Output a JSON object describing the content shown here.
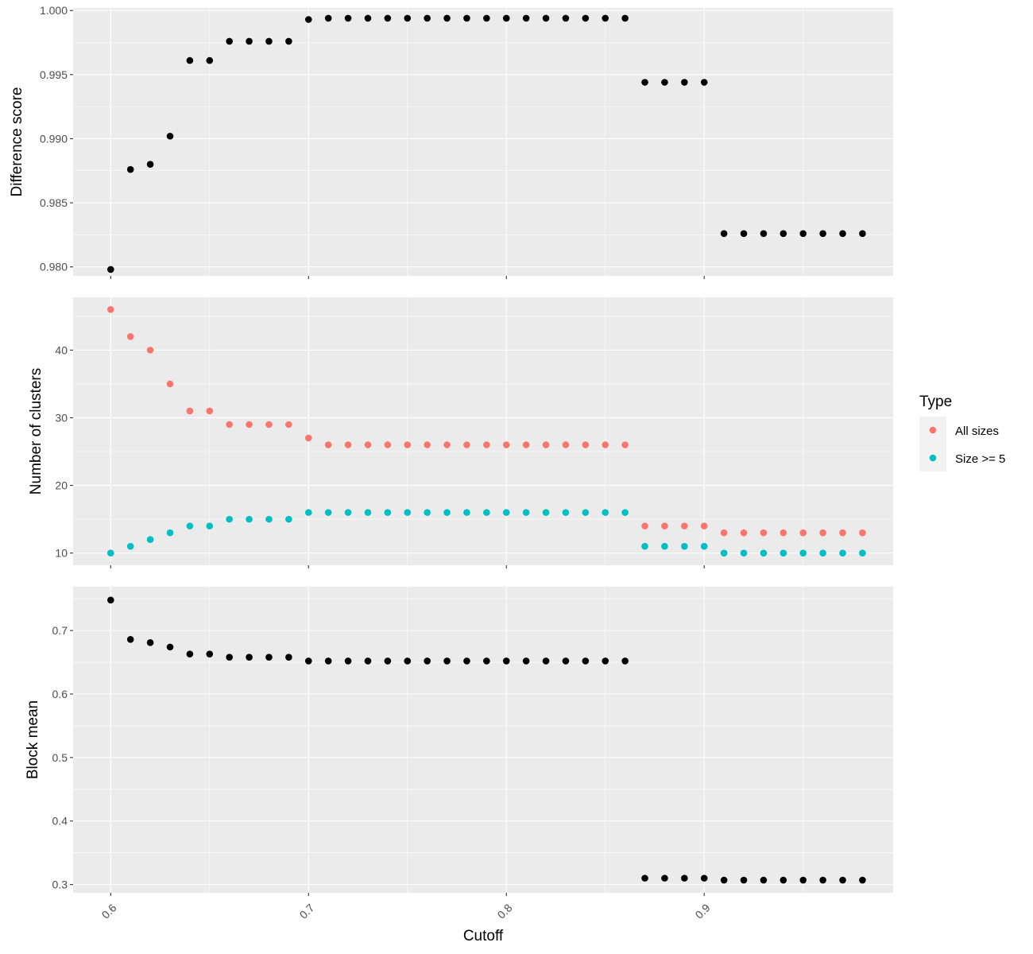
{
  "colors": {
    "panel_bg": "#EBEBEB",
    "grid_major": "#FFFFFF",
    "tick": "#333333",
    "tick_label": "#4D4D4D",
    "black_points": "#000000"
  },
  "x_axis": {
    "title": "Cutoff",
    "range": [
      0.581,
      0.9955
    ],
    "breaks": [
      0.6,
      0.7,
      0.8,
      0.9
    ],
    "tick_labels": [
      "0.6",
      "0.7",
      "0.8",
      "0.9"
    ],
    "minor_breaks": [
      0.65,
      0.75,
      0.85,
      0.95
    ]
  },
  "legend": {
    "title": "Type",
    "entries": [
      {
        "label": "All sizes",
        "color": "#F8766D"
      },
      {
        "label": "Size >= 5",
        "color": "#00BFC4"
      }
    ]
  },
  "chart_data": [
    {
      "type": "scatter",
      "ylabel": "Difference score",
      "xlabel": "Cutoff",
      "ylim": [
        0.9793,
        1.0002
      ],
      "y_breaks": [
        0.98,
        0.985,
        0.99,
        0.995,
        1.0
      ],
      "y_tick_labels": [
        "0.980",
        "0.985",
        "0.990",
        "0.995",
        "1.000"
      ],
      "series": [
        {
          "color": "#000000",
          "x": [
            0.6,
            0.61,
            0.62,
            0.63,
            0.64,
            0.65,
            0.66,
            0.67,
            0.68,
            0.69,
            0.7,
            0.71,
            0.72,
            0.73,
            0.74,
            0.75,
            0.76,
            0.77,
            0.78,
            0.79,
            0.8,
            0.81,
            0.82,
            0.83,
            0.84,
            0.85,
            0.86,
            0.87,
            0.88,
            0.89,
            0.9,
            0.91,
            0.92,
            0.93,
            0.94,
            0.95,
            0.96,
            0.97,
            0.98
          ],
          "values": [
            0.9798,
            0.9876,
            0.988,
            0.9902,
            0.9961,
            0.9961,
            0.9976,
            0.9976,
            0.9976,
            0.9976,
            0.9993,
            0.9994,
            0.9994,
            0.9994,
            0.9994,
            0.9994,
            0.9994,
            0.9994,
            0.9994,
            0.9994,
            0.9994,
            0.9994,
            0.9994,
            0.9994,
            0.9994,
            0.9994,
            0.9994,
            0.9944,
            0.9944,
            0.9944,
            0.9944,
            0.9826,
            0.9826,
            0.9826,
            0.9826,
            0.9826,
            0.9826,
            0.9826,
            0.9826
          ]
        }
      ]
    },
    {
      "type": "scatter",
      "ylabel": "Number of clusters",
      "xlabel": "Cutoff",
      "ylim": [
        8.2,
        47.8
      ],
      "y_breaks": [
        10,
        20,
        30,
        40
      ],
      "y_tick_labels": [
        "10",
        "20",
        "30",
        "40"
      ],
      "series": [
        {
          "name": "All sizes",
          "color": "#F8766D",
          "x": [
            0.6,
            0.61,
            0.62,
            0.63,
            0.64,
            0.65,
            0.66,
            0.67,
            0.68,
            0.69,
            0.7,
            0.71,
            0.72,
            0.73,
            0.74,
            0.75,
            0.76,
            0.77,
            0.78,
            0.79,
            0.8,
            0.81,
            0.82,
            0.83,
            0.84,
            0.85,
            0.86,
            0.87,
            0.88,
            0.89,
            0.9,
            0.91,
            0.92,
            0.93,
            0.94,
            0.95,
            0.96,
            0.97,
            0.98
          ],
          "values": [
            46,
            42,
            40,
            35,
            31,
            31,
            29,
            29,
            29,
            29,
            27,
            26,
            26,
            26,
            26,
            26,
            26,
            26,
            26,
            26,
            26,
            26,
            26,
            26,
            26,
            26,
            26,
            14,
            14,
            14,
            14,
            13,
            13,
            13,
            13,
            13,
            13,
            13,
            13
          ]
        },
        {
          "name": "Size >= 5",
          "color": "#00BFC4",
          "x": [
            0.6,
            0.61,
            0.62,
            0.63,
            0.64,
            0.65,
            0.66,
            0.67,
            0.68,
            0.69,
            0.7,
            0.71,
            0.72,
            0.73,
            0.74,
            0.75,
            0.76,
            0.77,
            0.78,
            0.79,
            0.8,
            0.81,
            0.82,
            0.83,
            0.84,
            0.85,
            0.86,
            0.87,
            0.88,
            0.89,
            0.9,
            0.91,
            0.92,
            0.93,
            0.94,
            0.95,
            0.96,
            0.97,
            0.98
          ],
          "values": [
            10,
            11,
            12,
            13,
            14,
            14,
            15,
            15,
            15,
            15,
            16,
            16,
            16,
            16,
            16,
            16,
            16,
            16,
            16,
            16,
            16,
            16,
            16,
            16,
            16,
            16,
            16,
            11,
            11,
            11,
            11,
            10,
            10,
            10,
            10,
            10,
            10,
            10,
            10
          ]
        }
      ]
    },
    {
      "type": "scatter",
      "ylabel": "Block mean",
      "xlabel": "Cutoff",
      "ylim": [
        0.287,
        0.769
      ],
      "y_breaks": [
        0.3,
        0.4,
        0.5,
        0.6,
        0.7
      ],
      "y_tick_labels": [
        "0.3",
        "0.4",
        "0.5",
        "0.6",
        "0.7"
      ],
      "series": [
        {
          "color": "#000000",
          "x": [
            0.6,
            0.61,
            0.62,
            0.63,
            0.64,
            0.65,
            0.66,
            0.67,
            0.68,
            0.69,
            0.7,
            0.71,
            0.72,
            0.73,
            0.74,
            0.75,
            0.76,
            0.77,
            0.78,
            0.79,
            0.8,
            0.81,
            0.82,
            0.83,
            0.84,
            0.85,
            0.86,
            0.87,
            0.88,
            0.89,
            0.9,
            0.91,
            0.92,
            0.93,
            0.94,
            0.95,
            0.96,
            0.97,
            0.98
          ],
          "values": [
            0.748,
            0.686,
            0.681,
            0.674,
            0.663,
            0.663,
            0.658,
            0.658,
            0.658,
            0.658,
            0.652,
            0.652,
            0.652,
            0.652,
            0.652,
            0.652,
            0.652,
            0.652,
            0.652,
            0.652,
            0.652,
            0.652,
            0.652,
            0.652,
            0.652,
            0.652,
            0.652,
            0.31,
            0.31,
            0.31,
            0.31,
            0.307,
            0.307,
            0.307,
            0.307,
            0.307,
            0.307,
            0.307,
            0.307
          ]
        }
      ]
    }
  ]
}
